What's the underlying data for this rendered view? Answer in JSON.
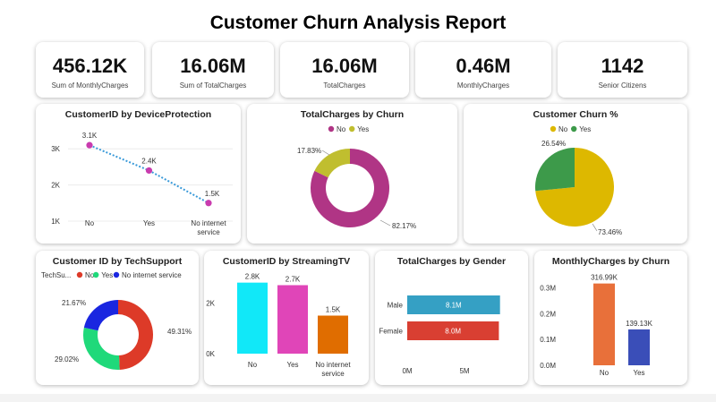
{
  "report_title": "Customer Churn Analysis Report",
  "kpis": [
    {
      "value": "456.12K",
      "label": "Sum of MonthlyCharges"
    },
    {
      "value": "16.06M",
      "label": "Sum of TotalCharges"
    },
    {
      "value": "16.06M",
      "label": "TotalCharges"
    },
    {
      "value": "0.46M",
      "label": "MonthlyCharges"
    },
    {
      "value": "1142",
      "label": "Senior Citizens"
    }
  ],
  "colors": {
    "magenta": "#C93BAE",
    "dotted_line": "#3A9AD9",
    "donut_no": "#B03585",
    "donut_yes": "#C0BE2F",
    "pie_no": "#DDB800",
    "pie_yes": "#3D9A4A",
    "tech_no": "#DD3A28",
    "tech_yes": "#1FD97A",
    "tech_nis": "#1A26E0",
    "stream_no": "#11E8F8",
    "stream_yes": "#E045B8",
    "stream_nis": "#E06D00",
    "gender_male": "#35A0C4",
    "gender_female": "#D93F32",
    "monthly_no": "#E8703A",
    "monthly_yes": "#3A4EB8"
  },
  "chart_data": [
    {
      "id": "device_protection",
      "type": "line",
      "title": "CustomerID by DeviceProtection",
      "categories": [
        "No",
        "Yes",
        "No internet service"
      ],
      "values": [
        3100,
        2400,
        1500
      ],
      "data_labels": [
        "3.1K",
        "2.4K",
        "1.5K"
      ],
      "y_ticks": [
        "3K",
        "2K",
        "1K"
      ],
      "ylim": [
        900,
        3500
      ]
    },
    {
      "id": "totalcharges_churn",
      "type": "pie",
      "subtype": "donut",
      "title": "TotalCharges by Churn",
      "legend": [
        "No",
        "Yes"
      ],
      "values": [
        82.17,
        17.83
      ],
      "data_labels": [
        "82.17%",
        "17.83%"
      ]
    },
    {
      "id": "customer_churn_pct",
      "type": "pie",
      "title": "Customer Churn %",
      "legend": [
        "No",
        "Yes"
      ],
      "values": [
        73.46,
        26.54
      ],
      "data_labels": [
        "73.46%",
        "26.54%"
      ]
    },
    {
      "id": "tech_support",
      "type": "pie",
      "subtype": "donut",
      "title": "Customer ID by TechSupport",
      "legend_title": "TechSu...",
      "legend": [
        "No",
        "Yes",
        "No internet service"
      ],
      "values": [
        49.31,
        29.02,
        21.67
      ],
      "data_labels": [
        "49.31%",
        "29.02%",
        "21.67%"
      ]
    },
    {
      "id": "streaming_tv",
      "type": "bar",
      "title": "CustomerID by StreamingTV",
      "categories": [
        "No",
        "Yes",
        "No internet service"
      ],
      "values": [
        2800,
        2700,
        1500
      ],
      "data_labels": [
        "2.8K",
        "2.7K",
        "1.5K"
      ],
      "y_ticks": [
        "2K",
        "0K"
      ],
      "ylim": [
        0,
        3000
      ]
    },
    {
      "id": "gender",
      "type": "bar",
      "orientation": "horizontal",
      "title": "TotalCharges by Gender",
      "categories": [
        "Male",
        "Female"
      ],
      "values": [
        8.1,
        8.0
      ],
      "data_labels": [
        "8.1M",
        "8.0M"
      ],
      "x_ticks": [
        "0M",
        "5M"
      ],
      "xlim": [
        0,
        10
      ]
    },
    {
      "id": "monthly_churn",
      "type": "bar",
      "title": "MonthlyCharges by Churn",
      "categories": [
        "No",
        "Yes"
      ],
      "values": [
        316.99,
        139.13
      ],
      "data_labels": [
        "316.99K",
        "139.13K"
      ],
      "y_ticks": [
        "0.3M",
        "0.2M",
        "0.1M",
        "0.0M"
      ],
      "ylim": [
        0,
        340
      ]
    }
  ]
}
